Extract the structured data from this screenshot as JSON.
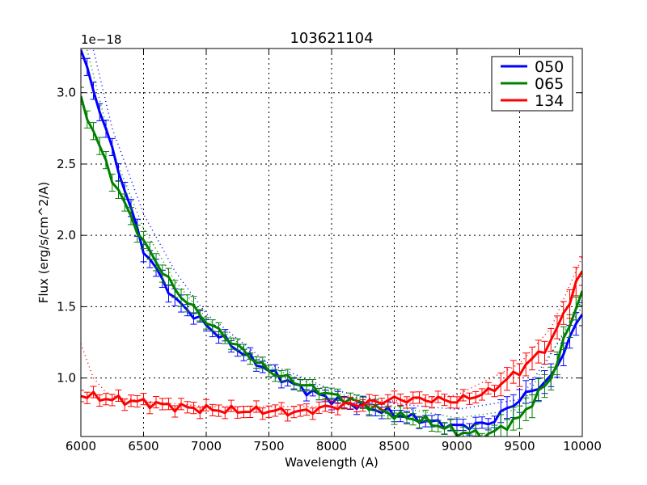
{
  "chart_data": {
    "type": "line",
    "title": "103621104",
    "xlabel": "Wavelength (A)",
    "ylabel": "Flux (erg/s/cm^2/A)",
    "y_offset_label": "1e−18",
    "xlim": [
      6000,
      10000
    ],
    "ylim": [
      0.59,
      3.31
    ],
    "xticks": [
      6000,
      6500,
      7000,
      7500,
      8000,
      8500,
      9000,
      9500,
      10000
    ],
    "xtick_labels": [
      "6000",
      "6500",
      "7000",
      "7500",
      "8000",
      "8500",
      "9000",
      "9500",
      "10000"
    ],
    "yticks": [
      1.0,
      1.5,
      2.0,
      2.5,
      3.0
    ],
    "ytick_labels": [
      "1.0",
      "1.5",
      "2.0",
      "2.5",
      "3.0"
    ],
    "grid": true,
    "legend_position": "upper right",
    "x": [
      6000,
      6250,
      6500,
      6750,
      7000,
      7250,
      7500,
      7750,
      8000,
      8250,
      8500,
      8750,
      9000,
      9250,
      9500,
      9750,
      10000
    ],
    "series": [
      {
        "name": "050",
        "color": "#0000ff",
        "style": "solid with error bars",
        "values": [
          3.3,
          2.6,
          1.9,
          1.55,
          1.37,
          1.2,
          1.05,
          0.93,
          0.85,
          0.8,
          0.75,
          0.7,
          0.66,
          0.68,
          0.85,
          1.0,
          1.46
        ]
      },
      {
        "name": "065",
        "color": "#008000",
        "style": "solid with error bars",
        "values": [
          2.95,
          2.4,
          1.95,
          1.62,
          1.4,
          1.22,
          1.05,
          0.96,
          0.88,
          0.82,
          0.74,
          0.7,
          0.62,
          0.6,
          0.72,
          1.0,
          1.62
        ]
      },
      {
        "name": "134",
        "color": "#ff0000",
        "style": "solid with error bars",
        "values": [
          0.88,
          0.85,
          0.83,
          0.8,
          0.78,
          0.77,
          0.77,
          0.76,
          0.8,
          0.82,
          0.85,
          0.85,
          0.84,
          0.9,
          1.05,
          1.25,
          1.75
        ]
      }
    ],
    "model_curves": [
      {
        "name": "050 model",
        "color": "#0000ff",
        "style": "dotted",
        "x": [
          6100,
          6250,
          6500,
          6750,
          7000,
          7500,
          8000,
          8500,
          9000,
          9500,
          10000
        ],
        "values": [
          3.3,
          2.75,
          2.15,
          1.75,
          1.45,
          1.1,
          0.92,
          0.82,
          0.78,
          0.85,
          1.5
        ]
      },
      {
        "name": "065 model",
        "color": "#008000",
        "style": "dotted",
        "x": [
          6050,
          6250,
          6500,
          6750,
          7000,
          7500,
          8000,
          8500,
          9000,
          9500,
          10000
        ],
        "values": [
          3.3,
          2.6,
          2.05,
          1.68,
          1.42,
          1.08,
          0.9,
          0.8,
          0.72,
          0.78,
          1.55
        ]
      },
      {
        "name": "134 model",
        "color": "#ff0000",
        "style": "dotted",
        "x": [
          6000,
          6100,
          6200,
          6300,
          6500,
          7000,
          8000,
          9000,
          9500,
          9750,
          10000
        ],
        "values": [
          1.24,
          1.0,
          0.9,
          0.86,
          0.84,
          0.8,
          0.8,
          0.88,
          1.1,
          1.35,
          1.85
        ]
      }
    ]
  },
  "plot": {
    "title": "103621104",
    "xlabel": "Wavelength (A)",
    "ylabel": "Flux (erg/s/cm^2/A)",
    "offset": "1e−18"
  },
  "legend": [
    {
      "label": "050",
      "color": "#0000ff"
    },
    {
      "label": "065",
      "color": "#008000"
    },
    {
      "label": "134",
      "color": "#ff0000"
    }
  ]
}
